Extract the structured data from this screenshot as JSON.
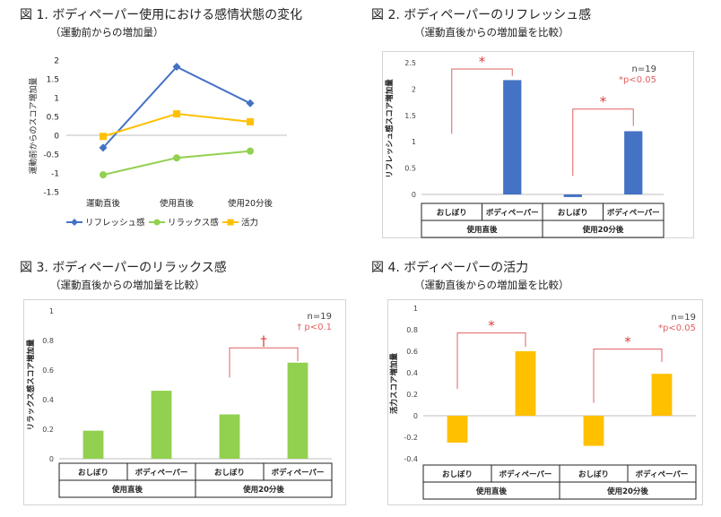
{
  "figures": [
    {
      "title": "図 1.  ボディペーパー使用における感情状態の変化",
      "subtitle": "（運動前からの増加量）"
    },
    {
      "title": "図 2.  ボディペーパーのリフレッシュ感",
      "subtitle": "（運動直後からの増加量を比較）"
    },
    {
      "title": "図 3.  ボディペーパーのリラックス感",
      "subtitle": "（運動直後からの増加量を比較）"
    },
    {
      "title": "図 4.  ボディペーパーの活力",
      "subtitle": "（運動直後からの増加量を比較）"
    }
  ],
  "chart_data": [
    {
      "type": "line",
      "ylabel": "運動前からのスコア増加量",
      "categories": [
        "運動直後",
        "使用直後",
        "使用20分後"
      ],
      "ylim": [
        -1.5,
        2
      ],
      "yticks": [
        -1.5,
        -1,
        -0.5,
        0,
        0.5,
        1,
        1.5,
        2
      ],
      "series": [
        {
          "name": "リフレッシュ感",
          "values": [
            -0.33,
            1.82,
            0.85
          ],
          "color": "#4472c4",
          "marker": "diamond"
        },
        {
          "name": "リラックス感",
          "values": [
            -1.05,
            -0.6,
            -0.42
          ],
          "color": "#92d050",
          "marker": "circle"
        },
        {
          "name": "活力",
          "values": [
            -0.03,
            0.57,
            0.36
          ],
          "color": "#ffc000",
          "marker": "square"
        }
      ],
      "legend": "bottom"
    },
    {
      "type": "bar",
      "ylabel": "リフレッシュ感スコア増加量",
      "categories": [
        "おしぼり",
        "ボディペーパー",
        "おしぼり",
        "ボディペーパー"
      ],
      "groups": [
        "使用直後",
        "使用20分後"
      ],
      "values": [
        0,
        2.17,
        -0.05,
        1.2
      ],
      "color": "#4472c4",
      "ylim": [
        0,
        2.5
      ],
      "yticks": [
        "0",
        "0.5",
        "1",
        "1.5",
        "2",
        "2.5"
      ],
      "note": "n=19",
      "note2": "*p<0.05",
      "marks": [
        "*",
        "*"
      ]
    },
    {
      "type": "bar",
      "ylabel": "リラックス感スコア増加量",
      "categories": [
        "おしぼり",
        "ボディペーパー",
        "おしぼり",
        "ボディペーパー"
      ],
      "groups": [
        "使用直後",
        "使用20分後"
      ],
      "values": [
        0.19,
        0.46,
        0.3,
        0.65
      ],
      "color": "#92d050",
      "ylim": [
        0,
        1
      ],
      "yticks": [
        "0",
        "0.2",
        "0.4",
        "0.6",
        "0.8",
        "1"
      ],
      "note": "n=19",
      "note2": "† p<0.1",
      "marks": [
        "†"
      ]
    },
    {
      "type": "bar",
      "ylabel": "活力スコア増加量",
      "categories": [
        "おしぼり",
        "ボディペーパー",
        "おしぼり",
        "ボディペーパー"
      ],
      "groups": [
        "使用直後",
        "使用20分後"
      ],
      "values": [
        -0.25,
        0.6,
        -0.28,
        0.39
      ],
      "color": "#ffc000",
      "ylim": [
        -0.4,
        1
      ],
      "yticks": [
        "-0.4",
        "-0.2",
        "0",
        "0.2",
        "0.4",
        "0.6",
        "0.8",
        "1"
      ],
      "note": "n=19",
      "note2": "*p<0.05",
      "marks": [
        "*",
        "*"
      ]
    }
  ]
}
